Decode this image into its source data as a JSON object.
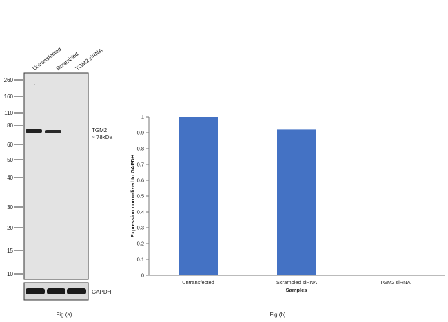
{
  "blot": {
    "lane_labels": [
      "Untransfected",
      "Scrambled",
      "TGM2 siRNA"
    ],
    "mw_markers": [
      "260",
      "160",
      "110",
      "80",
      "60",
      "50",
      "40",
      "30",
      "20",
      "15",
      "10"
    ],
    "band_label": "TGM2",
    "band_size": "~ 78kDa",
    "loading_label": "GAPDH",
    "caption": "Fig (a)",
    "colors": {
      "membrane": "#e3e3e3",
      "band": "#222222",
      "loading_bg": "#dadada"
    }
  },
  "chart_data": {
    "type": "bar",
    "categories": [
      "Untransfected",
      "Scrambled siRNA",
      "TGM2 siRNA"
    ],
    "values": [
      1.0,
      0.92,
      0
    ],
    "ylabel": "Expression  normalized to GAPDH",
    "xlabel": "Samples",
    "ytick_labels": [
      "0",
      "0.1",
      "0.2",
      "0.3",
      "0.4",
      "0.5",
      "0.6",
      "0.7",
      "0.8",
      "0.9",
      "1"
    ],
    "ylim": [
      0,
      1
    ],
    "grid": false,
    "bar_color": "#4472C4",
    "caption": "Fig (b)"
  }
}
